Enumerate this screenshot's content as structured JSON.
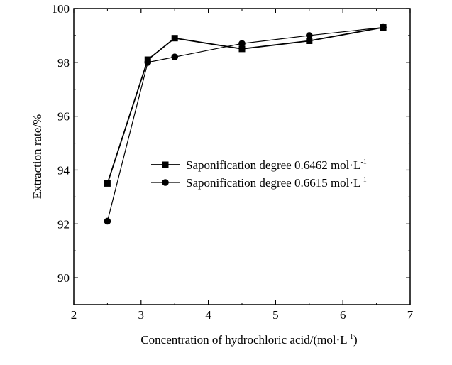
{
  "chart_data": {
    "type": "line",
    "xlabel": "Concentration of hydrochloric acid/(mol·L",
    "xlabel_sup": "-1",
    "xlabel_tail": ")",
    "ylabel": "Extraction rate/%",
    "xlim": [
      2,
      7
    ],
    "ylim": [
      89,
      100
    ],
    "x_ticks": [
      2,
      3,
      4,
      5,
      6,
      7
    ],
    "y_ticks": [
      90,
      92,
      94,
      96,
      98,
      100
    ],
    "grid": false,
    "legend_position": "center-right",
    "series": [
      {
        "name": "Saponification degree 0.6462 mol·L",
        "name_sup": "-1",
        "marker": "square",
        "color": "#000000",
        "x": [
          2.5,
          3.1,
          3.5,
          4.5,
          5.5,
          6.6
        ],
        "values": [
          93.5,
          98.1,
          98.9,
          98.5,
          98.8,
          99.3
        ]
      },
      {
        "name": "Saponification degree 0.6615 mol·L",
        "name_sup": "-1",
        "marker": "circle",
        "color": "#000000",
        "x": [
          2.5,
          3.1,
          3.5,
          4.5,
          5.5,
          6.6
        ],
        "values": [
          92.1,
          98.0,
          98.2,
          98.7,
          99.0,
          99.3
        ]
      }
    ]
  }
}
